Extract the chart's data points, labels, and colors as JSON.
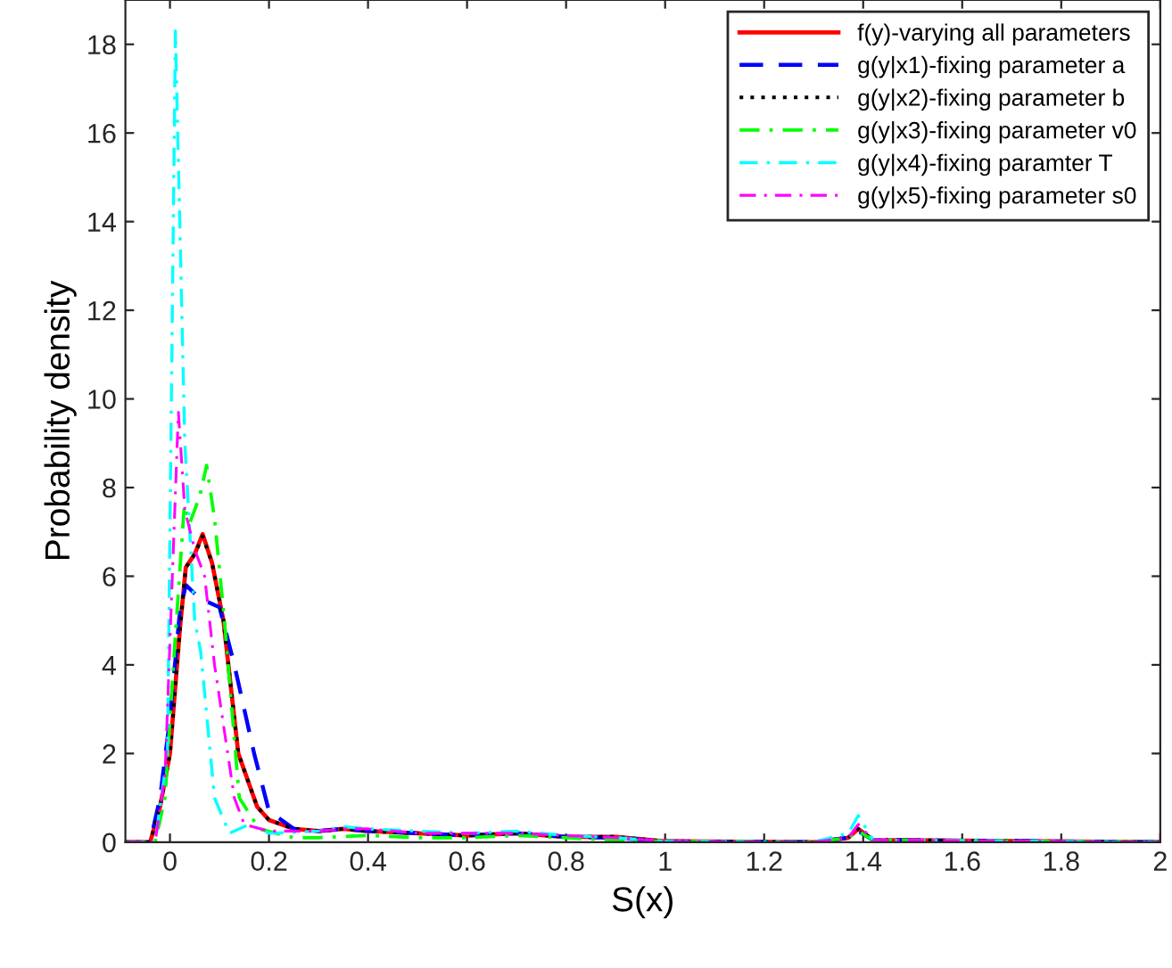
{
  "chart_data": {
    "type": "line",
    "xlabel": "S(x)",
    "ylabel": "Probability density",
    "xlim": [
      -0.09,
      2
    ],
    "ylim": [
      0,
      19
    ],
    "xticks": [
      0,
      0.2,
      0.4,
      0.6,
      0.8,
      1,
      1.2,
      1.4,
      1.6,
      1.8,
      2
    ],
    "yticks": [
      0,
      2,
      4,
      6,
      8,
      10,
      12,
      14,
      16,
      18
    ],
    "grid": false,
    "legend": "top right",
    "marker": "none",
    "series": [
      {
        "name": "f(y)-varying all parameters",
        "color": "#ff0000",
        "line_style": "solid",
        "x": [
          -0.09,
          -0.04,
          -0.02,
          0,
          0.02,
          0.032,
          0.05,
          0.066,
          0.085,
          0.108,
          0.138,
          0.176,
          0.2,
          0.25,
          0.3,
          0.35,
          0.4,
          0.5,
          0.6,
          0.7,
          0.8,
          0.9,
          1.0,
          1.3,
          1.37,
          1.39,
          1.42,
          2
        ],
        "values": [
          0,
          0,
          0.8,
          2.0,
          4.8,
          6.2,
          6.5,
          6.95,
          6.3,
          5.0,
          2.0,
          0.8,
          0.5,
          0.3,
          0.25,
          0.3,
          0.25,
          0.2,
          0.15,
          0.2,
          0.12,
          0.12,
          0.02,
          0,
          0.1,
          0.3,
          0.05,
          0
        ]
      },
      {
        "name": "g(y|x1)-fixing parameter a",
        "color": "#0000ff",
        "line_style": "dashed",
        "x": [
          -0.09,
          -0.04,
          -0.02,
          0,
          0.02,
          0.032,
          0.06,
          0.1,
          0.13,
          0.17,
          0.2,
          0.25,
          0.3,
          0.35,
          0.4,
          0.5,
          0.6,
          0.7,
          0.8,
          0.9,
          1.0,
          1.3,
          1.37,
          1.39,
          1.42,
          2
        ],
        "values": [
          0,
          0,
          1.0,
          2.8,
          5.2,
          5.8,
          5.5,
          5.3,
          4.0,
          2.0,
          0.7,
          0.3,
          0.25,
          0.3,
          0.25,
          0.2,
          0.15,
          0.2,
          0.12,
          0.1,
          0.02,
          0,
          0.1,
          0.25,
          0.05,
          0
        ]
      },
      {
        "name": "g(y|x2)-fixing parameter b",
        "color": "#000000",
        "line_style": "dotted",
        "x": [
          -0.09,
          -0.04,
          -0.02,
          0,
          0.02,
          0.032,
          0.05,
          0.066,
          0.085,
          0.108,
          0.138,
          0.176,
          0.2,
          0.25,
          0.3,
          0.35,
          0.4,
          0.5,
          0.6,
          0.7,
          0.8,
          0.9,
          1.0,
          1.3,
          1.37,
          1.39,
          1.42,
          2
        ],
        "values": [
          0,
          0,
          0.8,
          2.0,
          4.8,
          6.2,
          6.5,
          6.9,
          6.3,
          5.0,
          2.0,
          0.8,
          0.5,
          0.3,
          0.25,
          0.3,
          0.25,
          0.2,
          0.15,
          0.2,
          0.12,
          0.12,
          0.02,
          0,
          0.1,
          0.3,
          0.05,
          0
        ]
      },
      {
        "name": "g(y|x3)-fixing parameter v0",
        "color": "#00ff00",
        "line_style": "dashdot",
        "x": [
          -0.09,
          -0.03,
          -0.01,
          0.01,
          0.029,
          0.04,
          0.06,
          0.074,
          0.09,
          0.11,
          0.14,
          0.18,
          0.25,
          0.3,
          0.4,
          0.5,
          0.6,
          0.7,
          0.8,
          0.9,
          1.0,
          1.3,
          1.37,
          1.39,
          1.42,
          2
        ],
        "values": [
          0,
          0,
          1.0,
          4.5,
          7.6,
          7.2,
          7.8,
          8.5,
          7.3,
          5.0,
          1.0,
          0.3,
          0.1,
          0.1,
          0.15,
          0.1,
          0.1,
          0.15,
          0.1,
          0.05,
          0.02,
          0,
          0.1,
          0.25,
          0.05,
          0
        ]
      },
      {
        "name": "g(y|x4)-fixing paramter T",
        "color": "#00ffff",
        "line_style": "dashdot",
        "x": [
          -0.09,
          -0.03,
          -0.005,
          0.011,
          0.03,
          0.05,
          0.062,
          0.09,
          0.12,
          0.16,
          0.2,
          0.3,
          0.35,
          0.4,
          0.5,
          0.6,
          0.7,
          0.8,
          0.9,
          1.0,
          1.3,
          1.37,
          1.39,
          1.42,
          2
        ],
        "values": [
          0,
          0,
          2.0,
          18.3,
          9.0,
          5.0,
          4.3,
          1.0,
          0.2,
          0.4,
          0.2,
          0.25,
          0.35,
          0.3,
          0.25,
          0.2,
          0.25,
          0.15,
          0.1,
          0.02,
          0,
          0.2,
          0.6,
          0.05,
          0
        ]
      },
      {
        "name": "g(y|x5)-fixing parameter s0",
        "color": "#ff00ff",
        "line_style": "dashdot",
        "x": [
          -0.09,
          -0.03,
          -0.01,
          0.017,
          0.03,
          0.05,
          0.07,
          0.09,
          0.13,
          0.15,
          0.2,
          0.3,
          0.35,
          0.4,
          0.5,
          0.6,
          0.7,
          0.8,
          0.9,
          1.0,
          1.3,
          1.37,
          1.39,
          1.42,
          2
        ],
        "values": [
          0,
          0,
          1.5,
          9.7,
          7.5,
          6.6,
          6.0,
          4.0,
          1.0,
          0.4,
          0.25,
          0.25,
          0.3,
          0.3,
          0.2,
          0.2,
          0.2,
          0.15,
          0.1,
          0.02,
          0,
          0.1,
          0.4,
          0.05,
          0
        ]
      }
    ]
  }
}
